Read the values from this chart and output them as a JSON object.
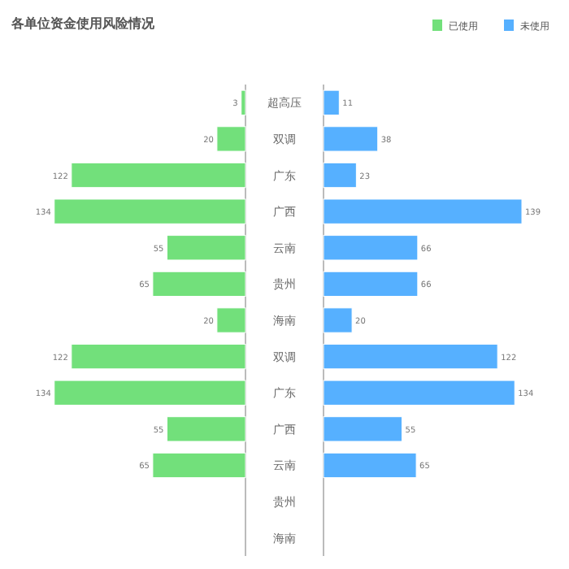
{
  "chart_data": [
    {
      "type": "bar",
      "orientation": "horizontal",
      "title": "各单位资金使用风险情况",
      "categories": [
        "超高压",
        "双调",
        "广东",
        "广西",
        "云南",
        "贵州",
        "海南",
        "双调",
        "广东",
        "广西",
        "云南",
        "贵州",
        "海南"
      ],
      "series": [
        {
          "name": "已使用",
          "color": "#72e07b",
          "values": [
            3,
            20,
            122,
            134,
            55,
            65,
            20,
            122,
            134,
            55,
            65,
            null,
            null
          ]
        }
      ],
      "data_labels": true,
      "legend": "top right"
    },
    {
      "type": "bar",
      "orientation": "horizontal",
      "categories": [
        null,
        null,
        null,
        null,
        null,
        null,
        null,
        null,
        null,
        null,
        null,
        null,
        null
      ],
      "series": [
        {
          "name": "未使用",
          "color": "#56b0ff",
          "values": [
            11,
            38,
            23,
            139,
            66,
            66,
            20,
            122,
            134,
            55,
            65,
            null,
            null
          ]
        }
      ],
      "data_labels": true,
      "legend": "top right"
    }
  ]
}
